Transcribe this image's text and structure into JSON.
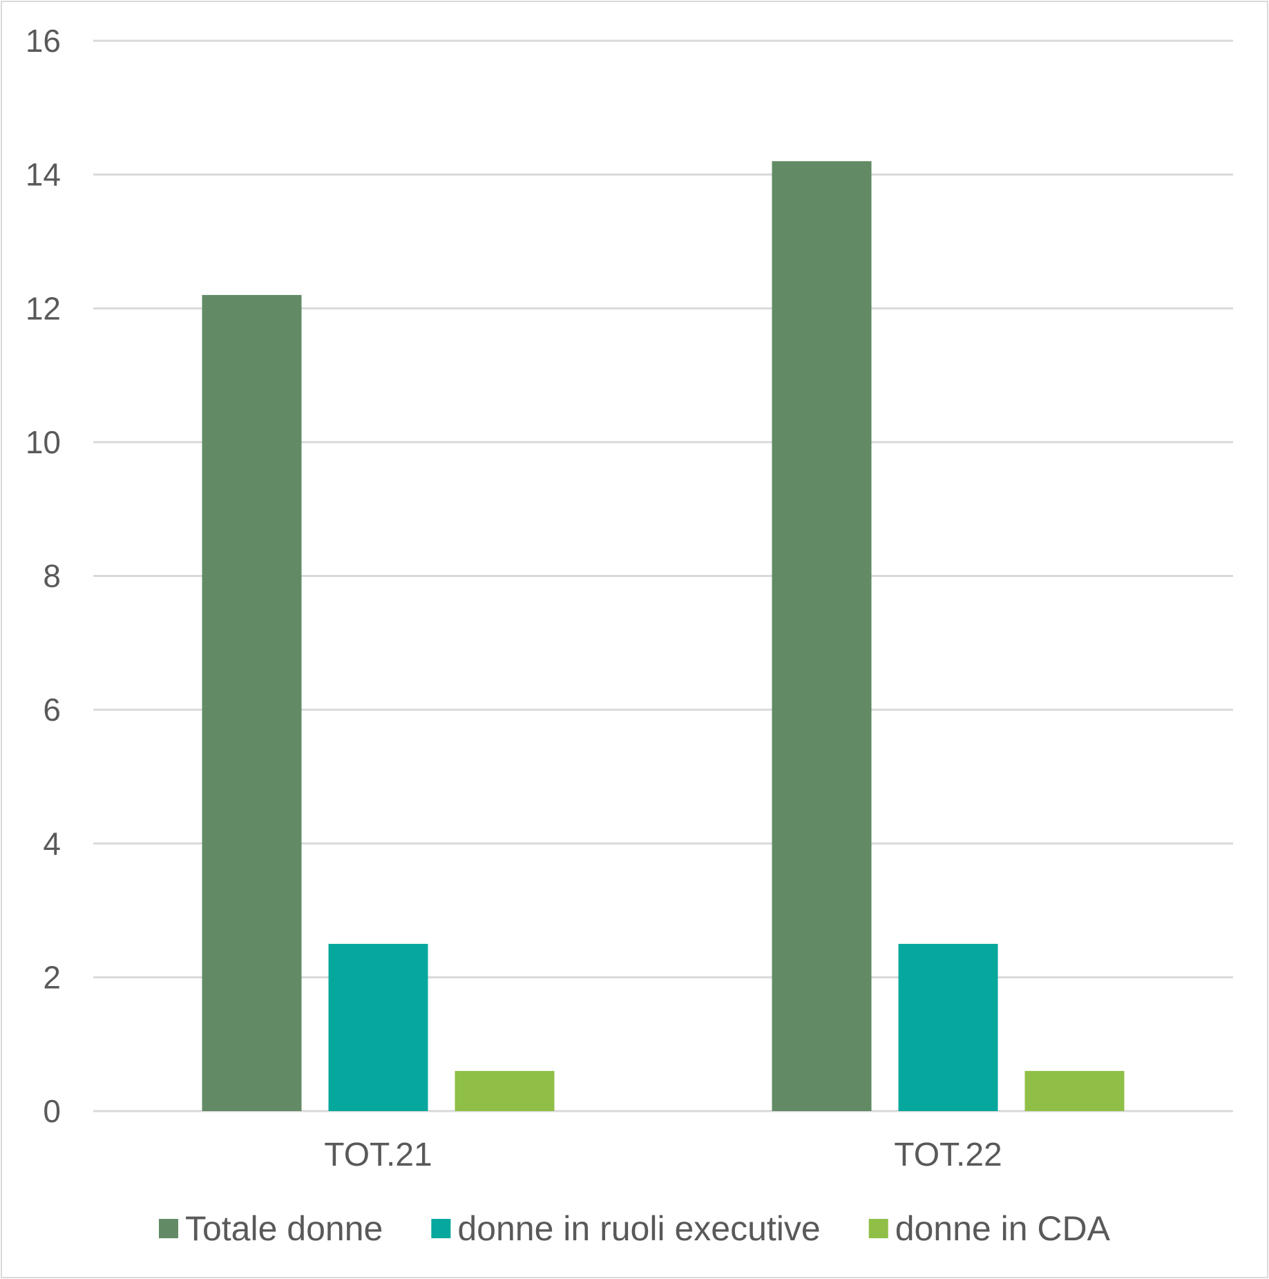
{
  "chart_data": {
    "type": "bar",
    "title": "",
    "xlabel": "",
    "ylabel": "",
    "categories": [
      "TOT.21",
      "TOT.22"
    ],
    "series": [
      {
        "name": "Totale donne",
        "values": [
          12.2,
          14.2
        ],
        "color": "#628b65"
      },
      {
        "name": "donne in ruoli executive",
        "values": [
          2.5,
          2.5
        ],
        "color": "#06a89d"
      },
      {
        "name": "donne in CDA",
        "values": [
          0.6,
          0.6
        ],
        "color": "#8fbf47"
      }
    ],
    "ylim": [
      0,
      16
    ],
    "yticks": [
      0,
      2,
      4,
      6,
      8,
      10,
      12,
      14,
      16
    ],
    "ytick_labels": [
      "0",
      "2",
      "4",
      "6",
      "8",
      "10",
      "12",
      "14",
      "16"
    ],
    "grid": true,
    "grid_color": "#d9d9d9",
    "text_color": "#595959",
    "legend_position": "bottom"
  }
}
